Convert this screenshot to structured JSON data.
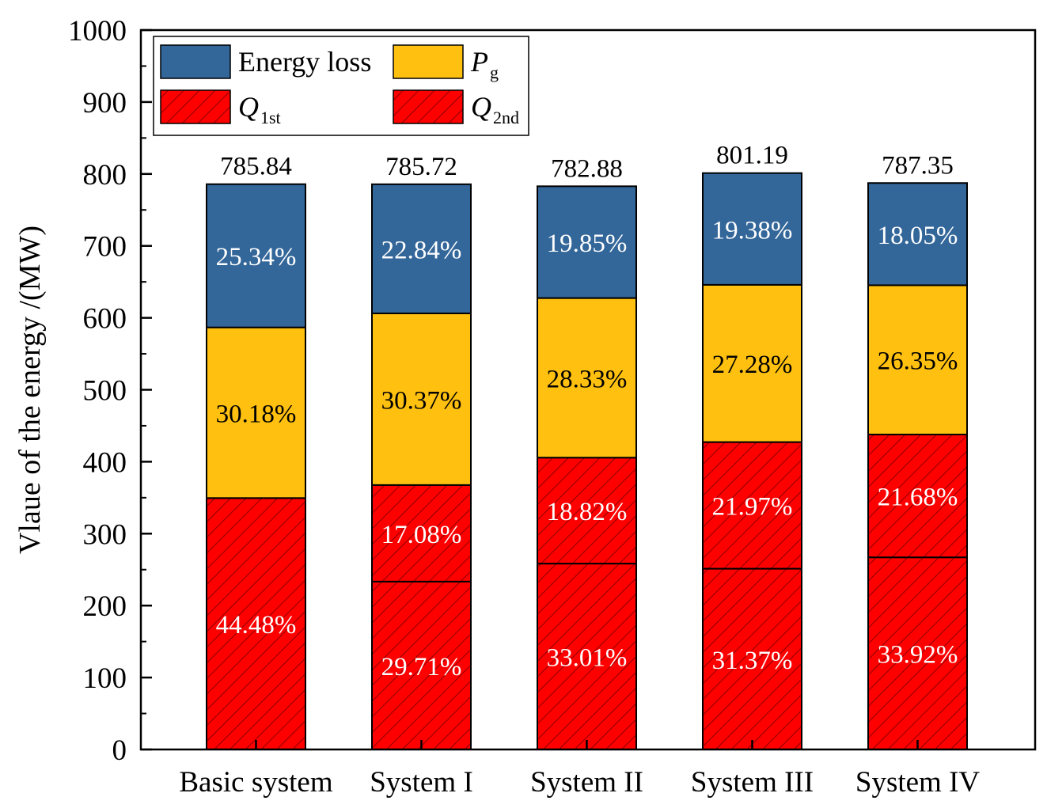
{
  "chart_data": {
    "type": "stacked-bar",
    "title": "",
    "xlabel": "",
    "ylabel": "Vlaue of the energy /(MW)",
    "ylim": [
      0,
      1000
    ],
    "yticks": [
      0,
      100,
      200,
      300,
      400,
      500,
      600,
      700,
      800,
      900,
      1000
    ],
    "categories": [
      "Basic system",
      "System I",
      "System II",
      "System III",
      "System IV"
    ],
    "totals": [
      785.84,
      785.72,
      782.88,
      801.19,
      787.35
    ],
    "total_labels": [
      "785.84",
      "785.72",
      "782.88",
      "801.19",
      "787.35"
    ],
    "series": [
      {
        "key": "q2nd",
        "name": "Q",
        "subscript": "2nd",
        "color": "#ff0000",
        "hatch": true,
        "values": [
          349.5,
          233.4,
          258.4,
          251.3,
          267.1
        ],
        "labels": [
          "44.48%",
          "29.71%",
          "33.01%",
          "31.37%",
          "33.92%"
        ]
      },
      {
        "key": "q1st",
        "name": "Q",
        "subscript": "1st",
        "color": "#ff0000",
        "hatch": true,
        "values": [
          0,
          134.2,
          147.3,
          176.0,
          170.7
        ],
        "labels": [
          "",
          "17.08%",
          "18.82%",
          "21.97%",
          "21.68%"
        ]
      },
      {
        "key": "pg",
        "name": "P",
        "subscript": "g",
        "color": "#ffc010",
        "hatch": false,
        "values": [
          237.2,
          238.6,
          221.8,
          218.6,
          207.5
        ],
        "labels": [
          "30.18%",
          "30.37%",
          "28.33%",
          "27.28%",
          "26.35%"
        ]
      },
      {
        "key": "loss",
        "name": "Energy loss",
        "subscript": "",
        "color": "#336699",
        "hatch": false,
        "values": [
          199.1,
          179.5,
          155.4,
          155.3,
          142.1
        ],
        "labels": [
          "25.34%",
          "22.84%",
          "19.85%",
          "19.38%",
          "18.05%"
        ]
      }
    ],
    "legend": {
      "position": "top-left",
      "order": [
        "loss",
        "pg",
        "q1st",
        "q2nd"
      ]
    },
    "colors": {
      "axis": "#000000",
      "hatch_line": "#8b0000",
      "label_on_dark": "#ffffff",
      "label_on_light": "#000000"
    }
  }
}
